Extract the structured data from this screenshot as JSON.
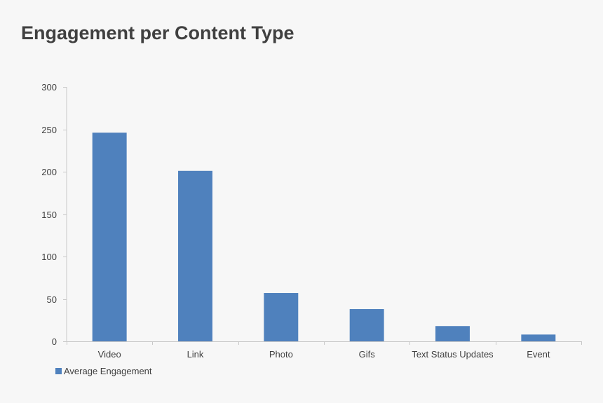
{
  "chart_data": {
    "type": "bar",
    "title": "Engagement per Content Type",
    "xlabel": "",
    "ylabel": "",
    "categories": [
      "Video",
      "Link",
      "Photo",
      "Gifs",
      "Text Status Updates",
      "Event"
    ],
    "series": [
      {
        "name": "Average Engagement",
        "values": [
          246,
          201,
          57,
          38,
          18,
          8
        ],
        "color": "#4f81bd"
      }
    ],
    "ylim": [
      0,
      300
    ],
    "yticks": [
      0,
      50,
      100,
      150,
      200,
      250,
      300
    ],
    "grid": false,
    "legend": "bottom-left"
  }
}
